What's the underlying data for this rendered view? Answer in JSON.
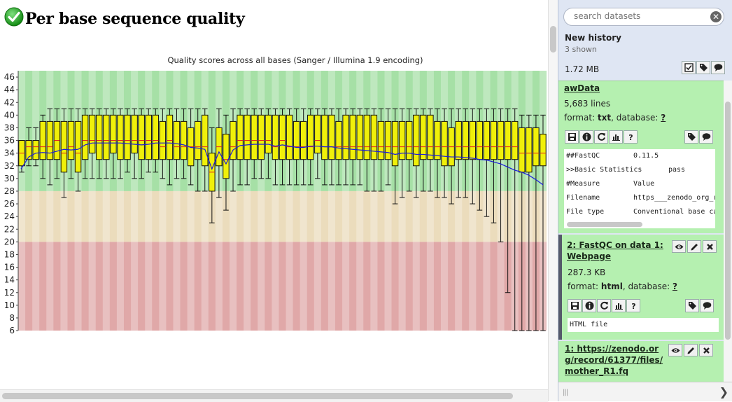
{
  "report": {
    "title": "Per base sequence quality",
    "status_icon": "check-icon"
  },
  "chart_data": {
    "type": "box",
    "title": "Quality scores across all bases (Sanger / Illumina 1.9 encoding)",
    "ylim": [
      6,
      47
    ],
    "yticks": [
      6,
      8,
      10,
      12,
      14,
      16,
      18,
      20,
      22,
      24,
      26,
      28,
      30,
      32,
      34,
      36,
      38,
      40,
      42,
      44,
      46
    ],
    "bands": [
      {
        "from": 28,
        "to": 47,
        "color": "#a6e0a6"
      },
      {
        "from": 20,
        "to": 28,
        "color": "#ebdcbc"
      },
      {
        "from": 6,
        "to": 20,
        "color": "#e0a8a8"
      }
    ],
    "boxes": [
      {
        "q1": 32,
        "median": 34,
        "q3": 36,
        "wlo": 31,
        "whi": 36
      },
      {
        "q1": 33,
        "median": 35,
        "q3": 36,
        "wlo": 32,
        "whi": 38
      },
      {
        "q1": 33,
        "median": 35,
        "q3": 36,
        "wlo": 32,
        "whi": 38
      },
      {
        "q1": 33,
        "median": 35,
        "q3": 39,
        "wlo": 30,
        "whi": 40
      },
      {
        "q1": 33,
        "median": 35,
        "q3": 39,
        "wlo": 29,
        "whi": 41
      },
      {
        "q1": 33,
        "median": 36,
        "q3": 39,
        "wlo": 30,
        "whi": 41
      },
      {
        "q1": 31,
        "median": 34,
        "q3": 39,
        "wlo": 27,
        "whi": 41
      },
      {
        "q1": 33,
        "median": 35,
        "q3": 39,
        "wlo": 30,
        "whi": 41
      },
      {
        "q1": 31,
        "median": 34,
        "q3": 39,
        "wlo": 28,
        "whi": 41
      },
      {
        "q1": 33,
        "median": 36,
        "q3": 40,
        "wlo": 30,
        "whi": 41
      },
      {
        "q1": 34,
        "median": 36,
        "q3": 40,
        "wlo": 30,
        "whi": 41
      },
      {
        "q1": 33,
        "median": 36,
        "q3": 40,
        "wlo": 30,
        "whi": 41
      },
      {
        "q1": 33,
        "median": 36,
        "q3": 40,
        "wlo": 30,
        "whi": 41
      },
      {
        "q1": 34,
        "median": 36,
        "q3": 40,
        "wlo": 30,
        "whi": 41
      },
      {
        "q1": 33,
        "median": 36,
        "q3": 40,
        "wlo": 30,
        "whi": 41
      },
      {
        "q1": 33,
        "median": 36,
        "q3": 40,
        "wlo": 31,
        "whi": 41
      },
      {
        "q1": 34,
        "median": 36,
        "q3": 40,
        "wlo": 30,
        "whi": 41
      },
      {
        "q1": 33,
        "median": 36,
        "q3": 40,
        "wlo": 30,
        "whi": 41
      },
      {
        "q1": 33,
        "median": 36,
        "q3": 40,
        "wlo": 31,
        "whi": 41
      },
      {
        "q1": 33,
        "median": 36,
        "q3": 40,
        "wlo": 31,
        "whi": 41
      },
      {
        "q1": 33,
        "median": 35,
        "q3": 39,
        "wlo": 30,
        "whi": 41
      },
      {
        "q1": 33,
        "median": 36,
        "q3": 40,
        "wlo": 29,
        "whi": 41
      },
      {
        "q1": 33,
        "median": 35,
        "q3": 39,
        "wlo": 30,
        "whi": 41
      },
      {
        "q1": 33,
        "median": 35,
        "q3": 39,
        "wlo": 30,
        "whi": 41
      },
      {
        "q1": 32,
        "median": 35,
        "q3": 38,
        "wlo": 29,
        "whi": 41
      },
      {
        "q1": 33,
        "median": 35,
        "q3": 39,
        "wlo": 28,
        "whi": 41
      },
      {
        "q1": 32,
        "median": 35,
        "q3": 40,
        "wlo": 28,
        "whi": 41
      },
      {
        "q1": 28,
        "median": 31,
        "q3": 34,
        "wlo": 23,
        "whi": 38
      },
      {
        "q1": 32,
        "median": 35,
        "q3": 38,
        "wlo": 27,
        "whi": 41
      },
      {
        "q1": 30,
        "median": 33,
        "q3": 37,
        "wlo": 25,
        "whi": 40
      },
      {
        "q1": 33,
        "median": 35,
        "q3": 39,
        "wlo": 28,
        "whi": 41
      },
      {
        "q1": 33,
        "median": 36,
        "q3": 40,
        "wlo": 29,
        "whi": 41
      },
      {
        "q1": 33,
        "median": 36,
        "q3": 40,
        "wlo": 29,
        "whi": 41
      },
      {
        "q1": 33,
        "median": 36,
        "q3": 40,
        "wlo": 30,
        "whi": 41
      },
      {
        "q1": 33,
        "median": 36,
        "q3": 40,
        "wlo": 30,
        "whi": 41
      },
      {
        "q1": 34,
        "median": 36,
        "q3": 40,
        "wlo": 30,
        "whi": 41
      },
      {
        "q1": 33,
        "median": 35,
        "q3": 40,
        "wlo": 29,
        "whi": 41
      },
      {
        "q1": 33,
        "median": 36,
        "q3": 40,
        "wlo": 29,
        "whi": 41
      },
      {
        "q1": 33,
        "median": 35,
        "q3": 40,
        "wlo": 29,
        "whi": 41
      },
      {
        "q1": 33,
        "median": 35,
        "q3": 39,
        "wlo": 29,
        "whi": 41
      },
      {
        "q1": 33,
        "median": 35,
        "q3": 39,
        "wlo": 29,
        "whi": 41
      },
      {
        "q1": 33,
        "median": 35,
        "q3": 40,
        "wlo": 29,
        "whi": 41
      },
      {
        "q1": 34,
        "median": 36,
        "q3": 40,
        "wlo": 30,
        "whi": 41
      },
      {
        "q1": 33,
        "median": 35,
        "q3": 40,
        "wlo": 29,
        "whi": 41
      },
      {
        "q1": 33,
        "median": 35,
        "q3": 40,
        "wlo": 29,
        "whi": 41
      },
      {
        "q1": 33,
        "median": 35,
        "q3": 39,
        "wlo": 29,
        "whi": 41
      },
      {
        "q1": 33,
        "median": 35,
        "q3": 40,
        "wlo": 29,
        "whi": 41
      },
      {
        "q1": 33,
        "median": 35,
        "q3": 40,
        "wlo": 29,
        "whi": 41
      },
      {
        "q1": 33,
        "median": 35,
        "q3": 40,
        "wlo": 29,
        "whi": 41
      },
      {
        "q1": 33,
        "median": 35,
        "q3": 40,
        "wlo": 28,
        "whi": 41
      },
      {
        "q1": 33,
        "median": 35,
        "q3": 40,
        "wlo": 28,
        "whi": 41
      },
      {
        "q1": 33,
        "median": 35,
        "q3": 39,
        "wlo": 28,
        "whi": 41
      },
      {
        "q1": 33,
        "median": 35,
        "q3": 39,
        "wlo": 29,
        "whi": 41
      },
      {
        "q1": 32,
        "median": 35,
        "q3": 39,
        "wlo": 26,
        "whi": 41
      },
      {
        "q1": 33,
        "median": 35,
        "q3": 39,
        "wlo": 27,
        "whi": 41
      },
      {
        "q1": 33,
        "median": 35,
        "q3": 39,
        "wlo": 28,
        "whi": 41
      },
      {
        "q1": 32,
        "median": 35,
        "q3": 40,
        "wlo": 27,
        "whi": 41
      },
      {
        "q1": 33,
        "median": 35,
        "q3": 40,
        "wlo": 28,
        "whi": 41
      },
      {
        "q1": 33,
        "median": 35,
        "q3": 40,
        "wlo": 28,
        "whi": 41
      },
      {
        "q1": 33,
        "median": 35,
        "q3": 39,
        "wlo": 27,
        "whi": 41
      },
      {
        "q1": 32,
        "median": 35,
        "q3": 39,
        "wlo": 27,
        "whi": 41
      },
      {
        "q1": 32,
        "median": 35,
        "q3": 38,
        "wlo": 26,
        "whi": 41
      },
      {
        "q1": 33,
        "median": 35,
        "q3": 39,
        "wlo": 27,
        "whi": 41
      },
      {
        "q1": 33,
        "median": 35,
        "q3": 39,
        "wlo": 27,
        "whi": 41
      },
      {
        "q1": 33,
        "median": 35,
        "q3": 39,
        "wlo": 26,
        "whi": 41
      },
      {
        "q1": 33,
        "median": 35,
        "q3": 39,
        "wlo": 25,
        "whi": 41
      },
      {
        "q1": 33,
        "median": 35,
        "q3": 39,
        "wlo": 24,
        "whi": 41
      },
      {
        "q1": 33,
        "median": 35,
        "q3": 39,
        "wlo": 23,
        "whi": 41
      },
      {
        "q1": 33,
        "median": 35,
        "q3": 39,
        "wlo": 20,
        "whi": 41
      },
      {
        "q1": 33,
        "median": 35,
        "q3": 39,
        "wlo": 12,
        "whi": 41
      },
      {
        "q1": 33,
        "median": 35,
        "q3": 39,
        "wlo": 6,
        "whi": 41
      },
      {
        "q1": 31,
        "median": 34,
        "q3": 38,
        "wlo": 6,
        "whi": 40
      },
      {
        "q1": 31,
        "median": 34,
        "q3": 38,
        "wlo": 6,
        "whi": 40
      },
      {
        "q1": 32,
        "median": 34,
        "q3": 38,
        "wlo": 6,
        "whi": 40
      },
      {
        "q1": 32,
        "median": 34,
        "q3": 37,
        "wlo": 6,
        "whi": 40
      }
    ],
    "mean": [
      31.5,
      33.4,
      34.0,
      34.1,
      34.0,
      34.3,
      34.6,
      34.5,
      34.6,
      35.3,
      35.6,
      35.6,
      35.6,
      35.6,
      35.6,
      35.5,
      35.4,
      35.3,
      35.4,
      35.6,
      35.6,
      35.6,
      35.5,
      35.3,
      34.9,
      34.8,
      34.6,
      31.5,
      34.2,
      32.3,
      34.5,
      35.2,
      35.3,
      35.4,
      35.4,
      35.4,
      35.1,
      35.3,
      35.1,
      34.9,
      34.9,
      35.1,
      35.1,
      35.0,
      35.0,
      34.8,
      34.7,
      34.6,
      34.5,
      34.4,
      34.3,
      34.2,
      34.1,
      33.8,
      34.0,
      34.0,
      33.8,
      33.8,
      33.7,
      33.6,
      33.5,
      33.4,
      33.4,
      33.3,
      33.2,
      33.0,
      32.9,
      32.6,
      32.3,
      31.8,
      31.3,
      31.0,
      30.5,
      29.8,
      29.0
    ],
    "colors": {
      "box": "#f0f00a",
      "median": "#e02020",
      "mean": "#1a1adc"
    }
  },
  "history": {
    "search_placeholder": "search datasets",
    "name": "New history",
    "shown": "3 shown",
    "size": "1.72 MB",
    "datasets": [
      {
        "hid_title": "awData",
        "lines": "5,683 lines",
        "format_label": "format: ",
        "format": "txt",
        "db_label": ", database: ",
        "db": "?",
        "peek": [
          [
            "##FastQC",
            "0.11.5"
          ],
          [
            ">>Basic Statistics",
            "pass"
          ],
          [
            "#Measure",
            "Value"
          ],
          [
            "Filename",
            "https___zenodo_org_r"
          ],
          [
            "File type",
            "Conventional base ca"
          ]
        ]
      },
      {
        "hid_title": "2: FastQC on data 1: Webpage",
        "size": "287.3 KB",
        "format_label": "format: ",
        "format": "html",
        "db_label": ", database: ",
        "db": "?",
        "peek": "HTML file"
      },
      {
        "hid_title": "1: https://zenodo.org/record/61377/files/mother_R1.fq"
      }
    ]
  }
}
